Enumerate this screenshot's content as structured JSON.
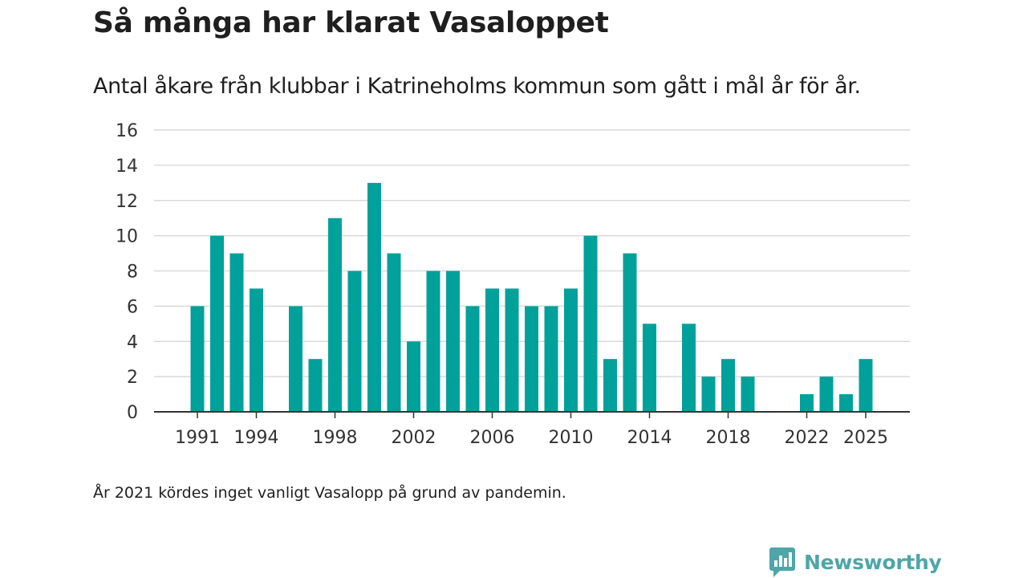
{
  "title": "Så många har klarat Vasaloppet",
  "subtitle": "Antal åkare från klubbar i Katrineholms kommun som gått i mål år för år.",
  "note": "År 2021 kördes inget vanligt Vasalopp på grund av pandemin.",
  "brand": {
    "name": "Newsworthy",
    "icon": "newsworthy-logo-icon"
  },
  "colors": {
    "bar": "#00a19a",
    "grid": "#d9d9d9",
    "axis": "#333333",
    "brand": "#4ea6a6"
  },
  "chart_data": {
    "type": "bar",
    "title": "Så många har klarat Vasaloppet",
    "xlabel": "",
    "ylabel": "",
    "ylim": [
      0,
      16
    ],
    "yticks": [
      0,
      2,
      4,
      6,
      8,
      10,
      12,
      14,
      16
    ],
    "xticks": [
      1991,
      1994,
      1998,
      2002,
      2006,
      2010,
      2014,
      2018,
      2022,
      2025
    ],
    "grid": true,
    "categories": [
      1991,
      1992,
      1993,
      1994,
      1995,
      1996,
      1997,
      1998,
      1999,
      2000,
      2001,
      2002,
      2003,
      2004,
      2005,
      2006,
      2007,
      2008,
      2009,
      2010,
      2011,
      2012,
      2013,
      2014,
      2015,
      2016,
      2017,
      2018,
      2019,
      2020,
      2021,
      2022,
      2023,
      2024,
      2025
    ],
    "values": [
      6,
      10,
      9,
      7,
      0,
      6,
      3,
      11,
      8,
      13,
      9,
      4,
      8,
      8,
      6,
      7,
      7,
      6,
      6,
      7,
      10,
      3,
      9,
      5,
      0,
      5,
      2,
      3,
      2,
      0,
      0,
      1,
      2,
      1,
      3
    ]
  }
}
